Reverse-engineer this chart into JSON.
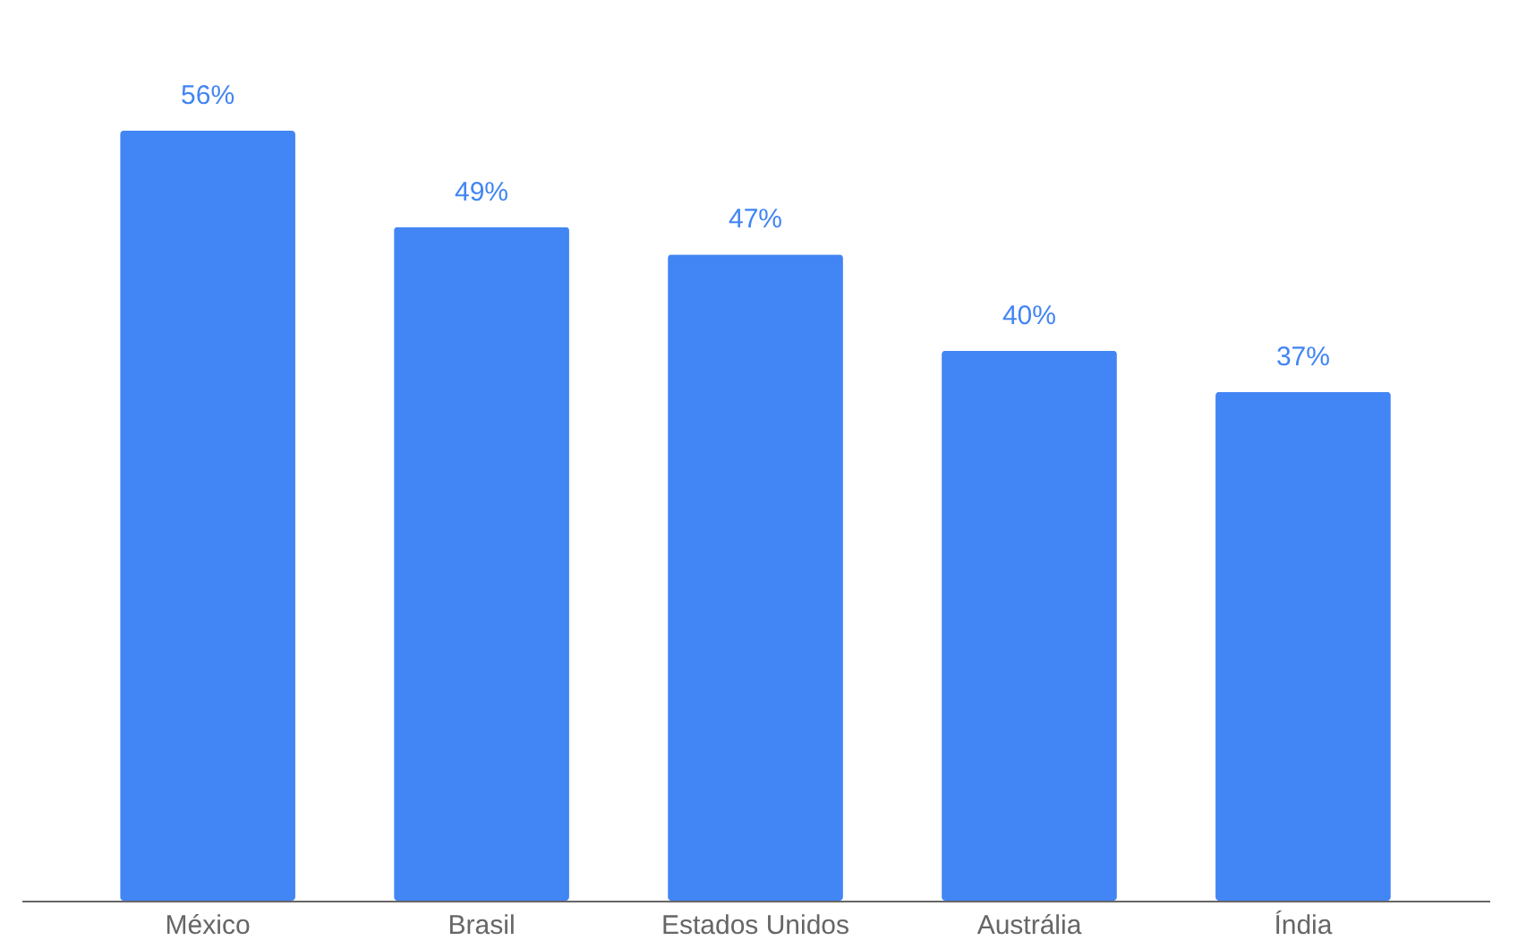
{
  "chart_data": {
    "type": "bar",
    "categories": [
      "México",
      "Brasil",
      "Estados Unidos",
      "Austrália",
      "Índia"
    ],
    "values": [
      56,
      49,
      47,
      40,
      37
    ],
    "value_labels": [
      "56%",
      "49%",
      "47%",
      "40%",
      "37%"
    ],
    "color": "#4285f4"
  }
}
